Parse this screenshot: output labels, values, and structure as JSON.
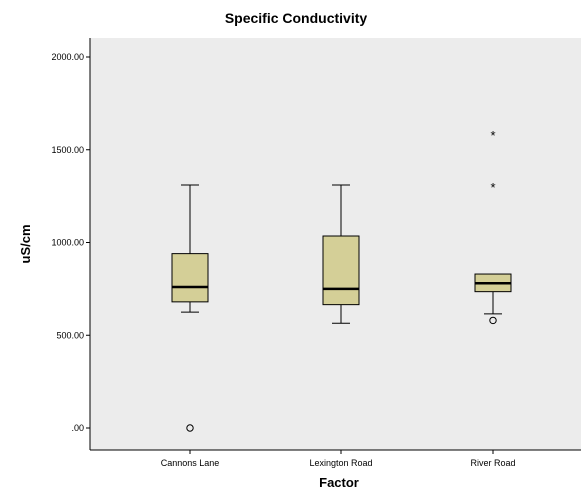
{
  "chart_data": {
    "type": "boxplot",
    "title": "Specific Conductivity",
    "xlabel": "Factor",
    "ylabel": "uS/cm",
    "ylim": [
      -100,
      2060
    ],
    "yticks": [
      0,
      500,
      1000,
      1500,
      2000
    ],
    "ytick_labels": [
      ".00",
      "500.00",
      "1000.00",
      "1500.00",
      "2000.00"
    ],
    "categories": [
      "Cannons Lane",
      "Lexington Road",
      "River Road"
    ],
    "boxes": [
      {
        "category": "Cannons Lane",
        "whisker_low": 625,
        "q1": 680,
        "median": 760,
        "q3": 940,
        "whisker_high": 1310,
        "outliers": [
          0
        ],
        "extremes": []
      },
      {
        "category": "Lexington Road",
        "whisker_low": 565,
        "q1": 665,
        "median": 750,
        "q3": 1035,
        "whisker_high": 1310,
        "outliers": [],
        "extremes": []
      },
      {
        "category": "River Road",
        "whisker_low": 615,
        "q1": 735,
        "median": 780,
        "q3": 830,
        "whisker_high": 830,
        "outliers": [
          580
        ],
        "extremes": [
          1300,
          1580
        ]
      }
    ],
    "colors": {
      "plot_bg": "#ececec",
      "box_fill": "#d4cf97",
      "stroke": "#000000"
    }
  }
}
